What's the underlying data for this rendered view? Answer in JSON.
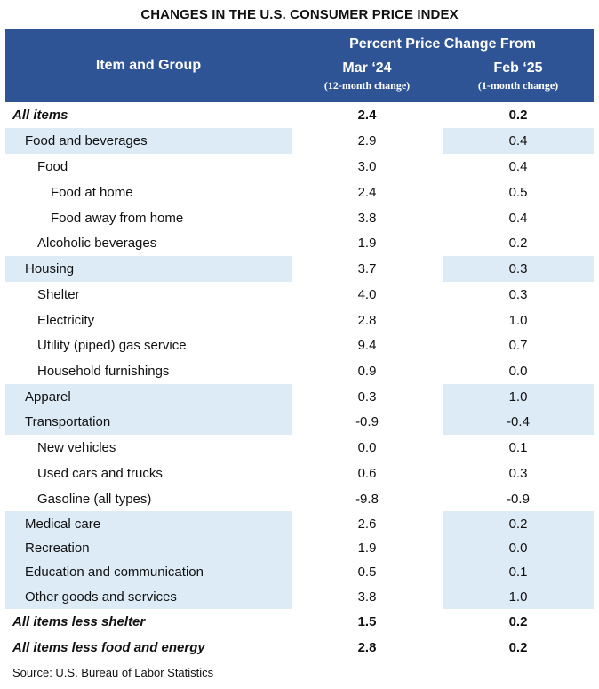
{
  "title": "CHANGES IN THE U.S. CONSUMER PRICE INDEX",
  "header": {
    "item_label": "Item and Group",
    "group_label": "Percent Price Change From",
    "col1": {
      "label": "Mar ‘24",
      "sub": "(12-month change)"
    },
    "col2": {
      "label": "Feb ‘25",
      "sub": "(1-month change)"
    }
  },
  "rows": [
    {
      "item": "All items",
      "v1": "2.4",
      "v2": "0.2"
    },
    {
      "item": "Food and beverages",
      "v1": "2.9",
      "v2": "0.4"
    },
    {
      "item": "Food",
      "v1": "3.0",
      "v2": "0.4"
    },
    {
      "item": "Food at home",
      "v1": "2.4",
      "v2": "0.5"
    },
    {
      "item": "Food away from home",
      "v1": "3.8",
      "v2": "0.4"
    },
    {
      "item": "Alcoholic beverages",
      "v1": "1.9",
      "v2": "0.2"
    },
    {
      "item": "Housing",
      "v1": "3.7",
      "v2": "0.3"
    },
    {
      "item": "Shelter",
      "v1": "4.0",
      "v2": "0.3"
    },
    {
      "item": "Electricity",
      "v1": "2.8",
      "v2": "1.0"
    },
    {
      "item": "Utility (piped) gas service",
      "v1": "9.4",
      "v2": "0.7"
    },
    {
      "item": "Household furnishings",
      "v1": "0.9",
      "v2": "0.0"
    },
    {
      "item": "Apparel",
      "v1": "0.3",
      "v2": "1.0"
    },
    {
      "item": "Transportation",
      "v1": "-0.9",
      "v2": "-0.4"
    },
    {
      "item": "New vehicles",
      "v1": "0.0",
      "v2": "0.1"
    },
    {
      "item": "Used cars and trucks",
      "v1": "0.6",
      "v2": "0.3"
    },
    {
      "item": "Gasoline (all types)",
      "v1": "-9.8",
      "v2": "-0.9"
    },
    {
      "item": "Medical care",
      "v1": "2.6",
      "v2": "0.2"
    },
    {
      "item": "Recreation",
      "v1": "1.9",
      "v2": "0.0"
    },
    {
      "item": "Education and communication",
      "v1": "0.5",
      "v2": "0.1"
    },
    {
      "item": "Other goods and services",
      "v1": "3.8",
      "v2": "1.0"
    },
    {
      "item": "All items less shelter",
      "v1": "1.5",
      "v2": "0.2"
    },
    {
      "item": "All items less food and energy",
      "v1": "2.8",
      "v2": "0.2"
    }
  ],
  "colors": {
    "header_bg": "#2f5496",
    "shade": "#ddebf7"
  },
  "source": "Source: U.S. Bureau of Labor Statistics"
}
